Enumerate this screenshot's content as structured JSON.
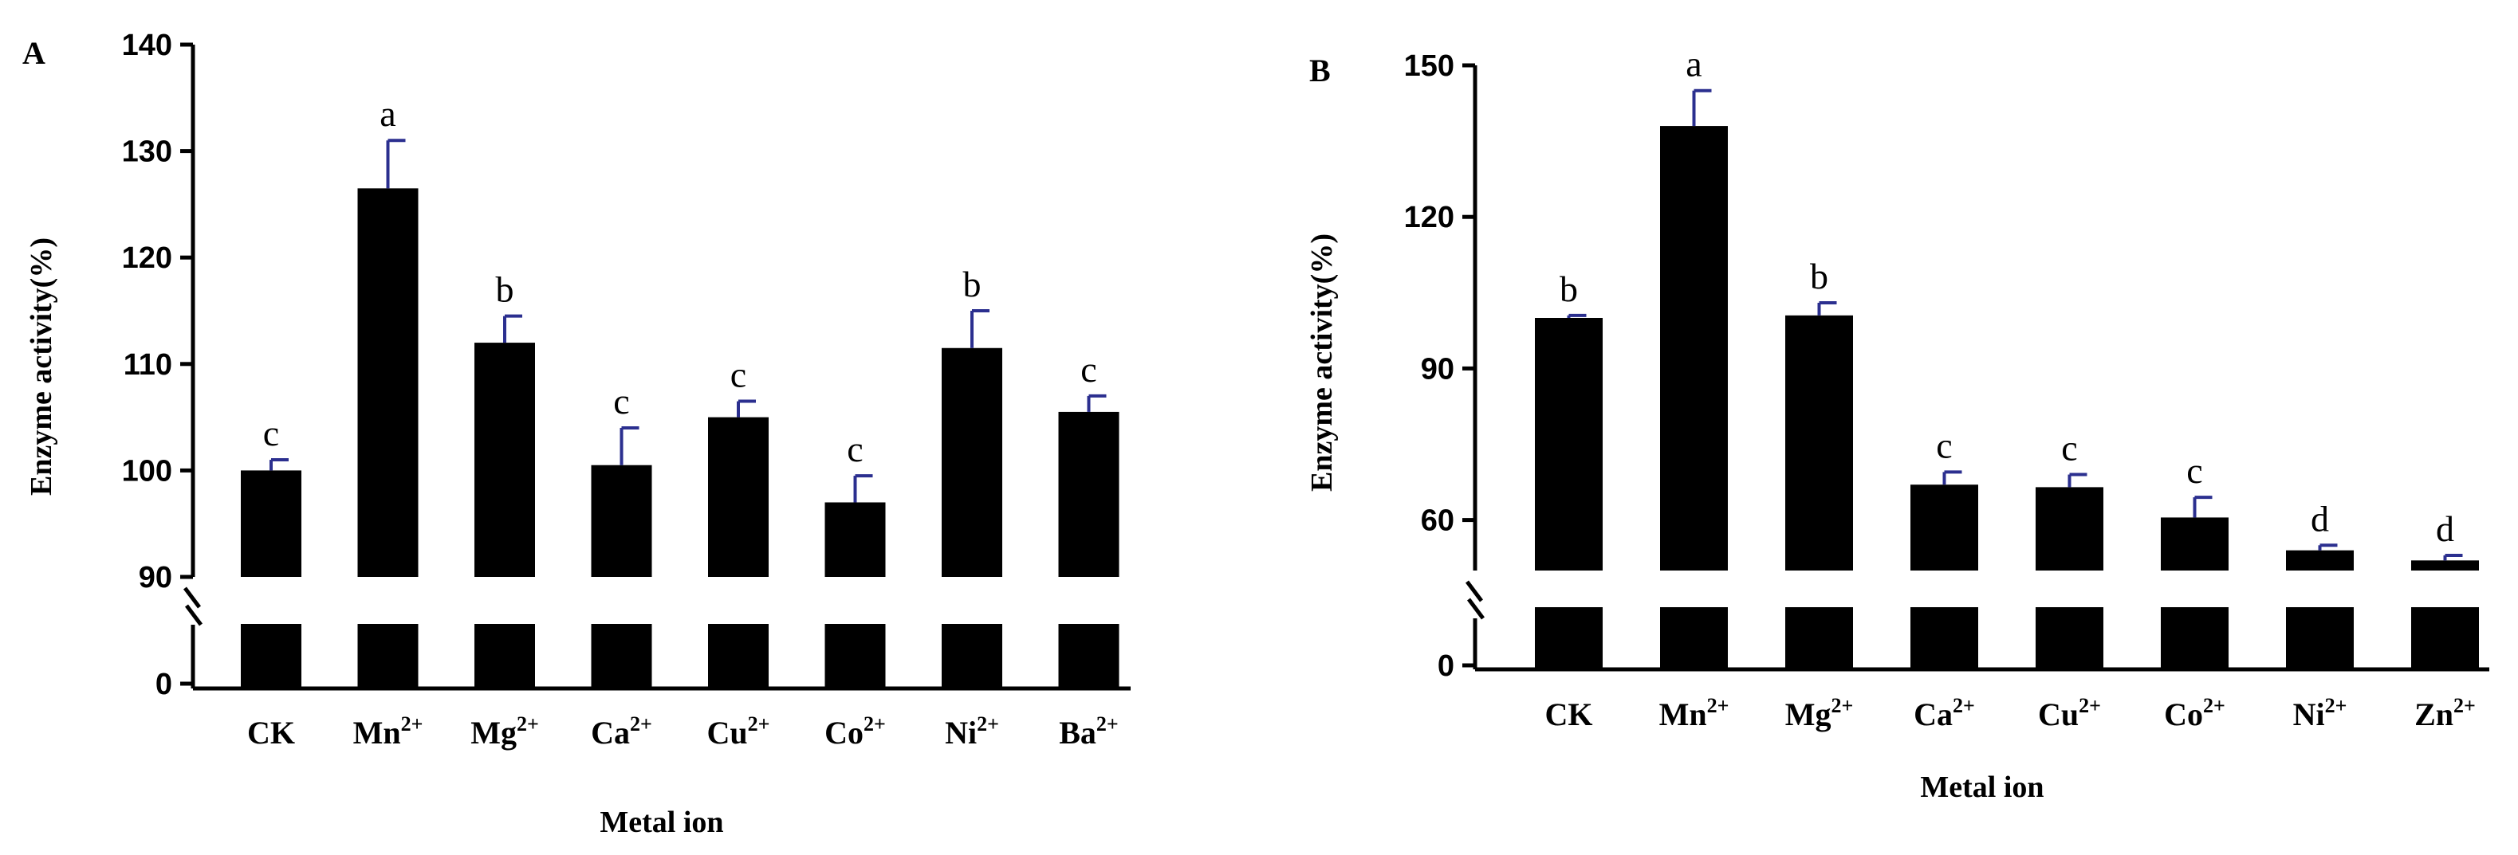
{
  "chart_data": [
    {
      "type": "bar",
      "panel": "A",
      "title": "",
      "xlabel": "Metal ion",
      "ylabel": "Enzyme activity(%)",
      "categories": [
        {
          "base": "CK",
          "sup": ""
        },
        {
          "base": "Mn",
          "sup": "2+"
        },
        {
          "base": "Mg",
          "sup": "2+"
        },
        {
          "base": "Ca",
          "sup": "2+"
        },
        {
          "base": "Cu",
          "sup": "2+"
        },
        {
          "base": "Co",
          "sup": "2+"
        },
        {
          "base": "Ni",
          "sup": "2+"
        },
        {
          "base": "Ba",
          "sup": "2+"
        }
      ],
      "values": [
        100,
        126.5,
        112,
        100.5,
        105,
        97,
        111.5,
        105.5
      ],
      "errors": [
        1,
        4.5,
        2.5,
        3.5,
        1.5,
        2.5,
        3.5,
        1.5
      ],
      "significance": [
        "c",
        "a",
        "b",
        "c",
        "c",
        "c",
        "b",
        "c"
      ],
      "yticks": [
        "0",
        "90",
        "100",
        "110",
        "120",
        "130",
        "140"
      ],
      "ylim_upper": [
        90,
        140
      ],
      "axis_break": true,
      "bar_color": "#000000",
      "error_color": "#2b2f8f"
    },
    {
      "type": "bar",
      "panel": "B",
      "title": "",
      "xlabel": "Metal ion",
      "ylabel": "Enzyme activity(%)",
      "categories": [
        {
          "base": "CK",
          "sup": ""
        },
        {
          "base": "Mn",
          "sup": "2+"
        },
        {
          "base": "Mg",
          "sup": "2+"
        },
        {
          "base": "Ca",
          "sup": "2+"
        },
        {
          "base": "Cu",
          "sup": "2+"
        },
        {
          "base": "Co",
          "sup": "2+"
        },
        {
          "base": "Ni",
          "sup": "2+"
        },
        {
          "base": "Zn",
          "sup": "2+"
        }
      ],
      "values": [
        100,
        138,
        100.5,
        67,
        66.5,
        60.5,
        54,
        52
      ],
      "errors": [
        0.5,
        7,
        2.5,
        2.5,
        2.5,
        4,
        1,
        1
      ],
      "significance": [
        "b",
        "a",
        "b",
        "c",
        "c",
        "c",
        "d",
        "d"
      ],
      "yticks": [
        "0",
        "60",
        "90",
        "120",
        "150"
      ],
      "ylim_upper": [
        50,
        150
      ],
      "axis_break": true,
      "bar_color": "#000000",
      "error_color": "#2b2f8f"
    }
  ]
}
